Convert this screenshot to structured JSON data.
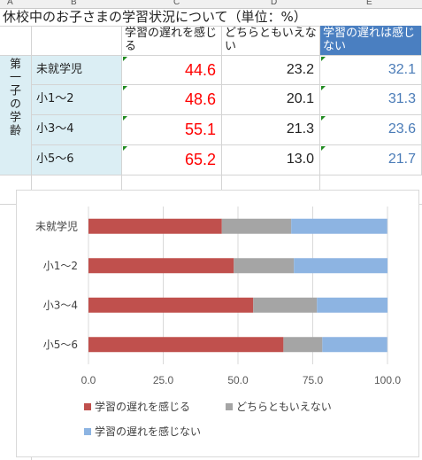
{
  "sheet": {
    "column_letters": [
      "A",
      "B",
      "C",
      "D",
      "E"
    ],
    "title": "休校中のお子さまの学習状況について（単位：%）",
    "headers": [
      "学習の遅れを感じる",
      "どちらともいえない",
      "学習の遅れは感じない"
    ],
    "group_label": "第一子の学齢",
    "rows": [
      {
        "label": "未就学児",
        "values": [
          "44.6",
          "23.2",
          "32.1"
        ]
      },
      {
        "label": "小1～2",
        "values": [
          "48.6",
          "20.1",
          "31.3"
        ]
      },
      {
        "label": "小3～4",
        "values": [
          "55.1",
          "21.3",
          "23.6"
        ]
      },
      {
        "label": "小5～6",
        "values": [
          "65.2",
          "13.0",
          "21.7"
        ]
      }
    ],
    "colors": {
      "header_fill": "#4a7fc1",
      "label_fill": "#dbeef4",
      "col1_text": "#ff0000",
      "col3_text": "#4a7bb7",
      "comment_marker": "#228b22"
    }
  },
  "chart_data": {
    "type": "bar",
    "orientation": "horizontal",
    "stacked": true,
    "categories": [
      "未就学児",
      "小1～2",
      "小3～4",
      "小5～6"
    ],
    "series": [
      {
        "name": "学習の遅れを感じる",
        "values": [
          44.6,
          48.6,
          55.1,
          65.2
        ],
        "color": "#c0504d"
      },
      {
        "name": "どちらともいえない",
        "values": [
          23.2,
          20.1,
          21.3,
          13.0
        ],
        "color": "#a5a5a5"
      },
      {
        "name": "学習の遅れを感じない",
        "values": [
          32.1,
          31.3,
          23.6,
          21.7
        ],
        "color": "#8db4e2"
      }
    ],
    "xlim": [
      0,
      100
    ],
    "xticks": [
      "0.0",
      "25.0",
      "50.0",
      "75.0",
      "100.0"
    ],
    "grid": true,
    "legend": "bottom"
  }
}
